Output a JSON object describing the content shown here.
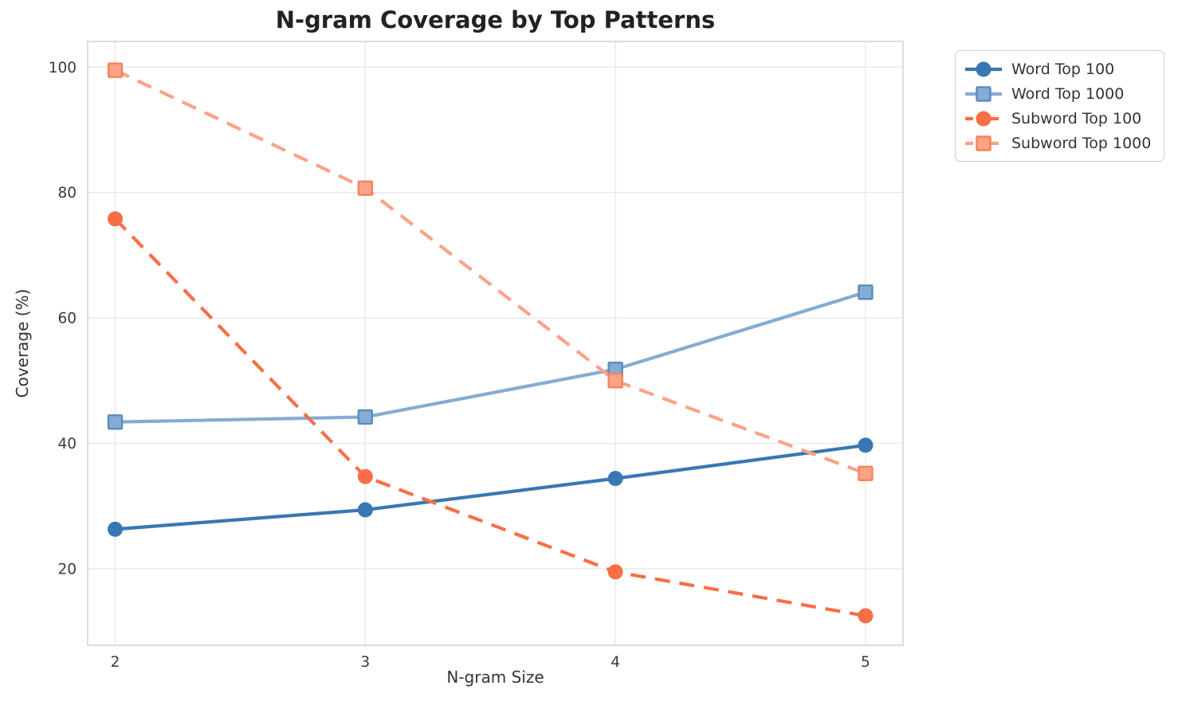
{
  "chart_data": {
    "type": "line",
    "title": "N-gram Coverage by Top Patterns",
    "xlabel": "N-gram Size",
    "ylabel": "Coverage (%)",
    "x": [
      2,
      3,
      4,
      5
    ],
    "xticks": [
      2,
      3,
      4,
      5
    ],
    "yticks": [
      20,
      40,
      60,
      80,
      100
    ],
    "xlim": [
      1.89,
      5.15
    ],
    "ylim": [
      7.8,
      104.1
    ],
    "grid": true,
    "legend": {
      "position": "outside-upper-right"
    },
    "colors": {
      "grid": "#e9e9e9",
      "spine": "#d5d5d5",
      "tick_label": "#3a3a3a",
      "title": "#222222",
      "axis_label": "#333333"
    },
    "series": [
      {
        "name": "Word Top 100",
        "values": [
          26.3,
          29.4,
          34.4,
          39.7
        ],
        "color": "#3877B3",
        "marker": "circle",
        "marker_edge": "#3877B3",
        "line_style": "solid"
      },
      {
        "name": "Word Top 1000",
        "values": [
          43.4,
          44.2,
          51.8,
          64.1
        ],
        "color": "#85ACD3",
        "marker": "square",
        "marker_edge": "#5A8CBE",
        "line_style": "solid"
      },
      {
        "name": "Subword Top 100",
        "values": [
          75.8,
          34.7,
          19.5,
          12.5
        ],
        "color": "#F86F47",
        "marker": "circle",
        "marker_edge": "#F86F47",
        "line_style": "dashed"
      },
      {
        "name": "Subword Top 1000",
        "values": [
          99.5,
          80.7,
          50.0,
          35.2
        ],
        "color": "#FBA386",
        "marker": "square",
        "marker_edge": "#F8825C",
        "line_style": "dashed"
      }
    ]
  }
}
